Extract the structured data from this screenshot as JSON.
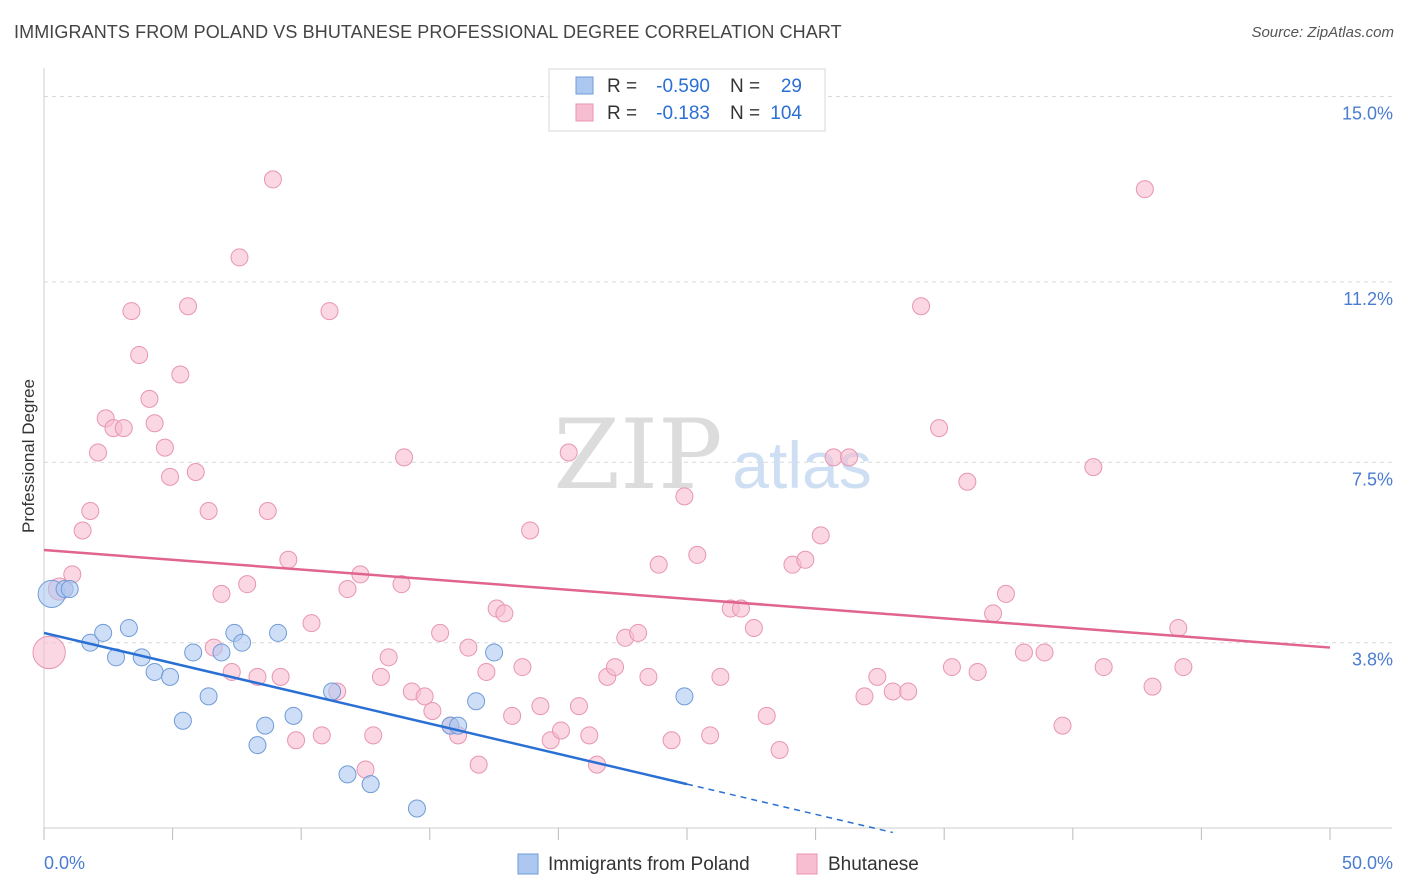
{
  "header": {
    "title": "IMMIGRANTS FROM POLAND VS BHUTANESE PROFESSIONAL DEGREE CORRELATION CHART",
    "source": "Source: ZipAtlas.com"
  },
  "watermark": {
    "zip": "ZIP",
    "atlas": "atlas"
  },
  "colors": {
    "poland_fill": "#adc8f0",
    "poland_stroke": "#6f9bd8",
    "poland_line": "#2a6fd4",
    "bhutanese_fill": "#f7bdd0",
    "bhutanese_stroke": "#e895b1",
    "bhutanese_line": "#e0648e",
    "axis_value": "#4a7cd0",
    "grid": "#d9d9d9"
  },
  "legend_top": {
    "rows": [
      {
        "r_label": "R =",
        "r_value": "-0.590",
        "n_label": "N =",
        "n_value": "29"
      },
      {
        "r_label": "R =",
        "r_value": "-0.183",
        "n_label": "N =",
        "n_value": "104"
      }
    ]
  },
  "chart_data": {
    "type": "scatter",
    "xlabel": "",
    "ylabel": "Professional Degree",
    "xlim": [
      0,
      50
    ],
    "ylim": [
      0,
      15.4
    ],
    "x_tick_labels": [
      "0.0%",
      "50.0%"
    ],
    "y_ticks": [
      3.8,
      7.5,
      11.2,
      15.0
    ],
    "y_tick_labels": [
      "3.8%",
      "7.5%",
      "11.2%",
      "15.0%"
    ],
    "grid": "horizontal dashed",
    "legend_position": "bottom-center",
    "series": [
      {
        "name": "Immigrants from Poland",
        "r": -0.59,
        "n": 29,
        "trend": {
          "x0": 0,
          "y0": 4.0,
          "x1": 25,
          "y1": 0.9,
          "dashed_to_x": 33
        },
        "points": [
          [
            0.3,
            4.8,
            1.6
          ],
          [
            0.8,
            4.9,
            1
          ],
          [
            1.0,
            4.9,
            1
          ],
          [
            1.8,
            3.8,
            1
          ],
          [
            2.3,
            4.0,
            1
          ],
          [
            2.8,
            3.5,
            1
          ],
          [
            3.3,
            4.1,
            1
          ],
          [
            3.8,
            3.5,
            1
          ],
          [
            4.3,
            3.2,
            1
          ],
          [
            4.9,
            3.1,
            1
          ],
          [
            5.4,
            2.2,
            1
          ],
          [
            5.8,
            3.6,
            1
          ],
          [
            6.4,
            2.7,
            1
          ],
          [
            6.9,
            3.6,
            1
          ],
          [
            7.4,
            4.0,
            1
          ],
          [
            7.7,
            3.8,
            1
          ],
          [
            8.3,
            1.7,
            1
          ],
          [
            8.6,
            2.1,
            1
          ],
          [
            9.1,
            4.0,
            1
          ],
          [
            9.7,
            2.3,
            1
          ],
          [
            11.2,
            2.8,
            1
          ],
          [
            11.8,
            1.1,
            1
          ],
          [
            12.7,
            0.9,
            1
          ],
          [
            14.5,
            0.4,
            1
          ],
          [
            15.8,
            2.1,
            1
          ],
          [
            16.1,
            2.1,
            1
          ],
          [
            16.8,
            2.6,
            1
          ],
          [
            17.5,
            3.6,
            1
          ],
          [
            24.9,
            2.7,
            1
          ]
        ]
      },
      {
        "name": "Bhutanese",
        "r": -0.183,
        "n": 104,
        "trend": {
          "x0": 0,
          "y0": 5.7,
          "x1": 50,
          "y1": 3.7
        },
        "points": [
          [
            0.2,
            3.6,
            1.9
          ],
          [
            0.6,
            4.9,
            1.3
          ],
          [
            1.1,
            5.2,
            1
          ],
          [
            1.5,
            6.1,
            1
          ],
          [
            1.8,
            6.5,
            1
          ],
          [
            2.1,
            7.7,
            1
          ],
          [
            2.4,
            8.4,
            1
          ],
          [
            2.7,
            8.2,
            1
          ],
          [
            3.1,
            8.2,
            1
          ],
          [
            3.4,
            10.6,
            1
          ],
          [
            3.7,
            9.7,
            1
          ],
          [
            4.1,
            8.8,
            1
          ],
          [
            4.3,
            8.3,
            1
          ],
          [
            4.7,
            7.8,
            1
          ],
          [
            4.9,
            7.2,
            1
          ],
          [
            5.3,
            9.3,
            1
          ],
          [
            5.6,
            10.7,
            1
          ],
          [
            5.9,
            7.3,
            1
          ],
          [
            6.4,
            6.5,
            1
          ],
          [
            6.6,
            3.7,
            1
          ],
          [
            6.9,
            4.8,
            1
          ],
          [
            7.3,
            3.2,
            1
          ],
          [
            7.6,
            11.7,
            1
          ],
          [
            7.9,
            5.0,
            1
          ],
          [
            8.3,
            3.1,
            1
          ],
          [
            8.7,
            6.5,
            1
          ],
          [
            8.9,
            13.3,
            1
          ],
          [
            9.2,
            3.1,
            1
          ],
          [
            9.5,
            5.5,
            1
          ],
          [
            9.8,
            1.8,
            1
          ],
          [
            10.4,
            4.2,
            1
          ],
          [
            10.8,
            1.9,
            1
          ],
          [
            11.1,
            10.6,
            1
          ],
          [
            11.4,
            2.8,
            1
          ],
          [
            11.8,
            4.9,
            1
          ],
          [
            12.3,
            5.2,
            1
          ],
          [
            12.5,
            1.2,
            1
          ],
          [
            12.8,
            1.9,
            1
          ],
          [
            13.1,
            3.1,
            1
          ],
          [
            13.4,
            3.5,
            1
          ],
          [
            13.9,
            5.0,
            1
          ],
          [
            14.0,
            7.6,
            1
          ],
          [
            14.3,
            2.8,
            1
          ],
          [
            14.8,
            2.7,
            1
          ],
          [
            15.1,
            2.4,
            1
          ],
          [
            15.4,
            4.0,
            1
          ],
          [
            15.8,
            2.1,
            1
          ],
          [
            16.1,
            1.9,
            1
          ],
          [
            16.5,
            3.7,
            1
          ],
          [
            16.9,
            1.3,
            1
          ],
          [
            17.2,
            3.2,
            1
          ],
          [
            17.6,
            4.5,
            1
          ],
          [
            17.9,
            4.4,
            1
          ],
          [
            18.2,
            2.3,
            1
          ],
          [
            18.6,
            3.3,
            1
          ],
          [
            18.9,
            6.1,
            1
          ],
          [
            19.3,
            2.5,
            1
          ],
          [
            19.7,
            1.8,
            1
          ],
          [
            20.1,
            2.0,
            1
          ],
          [
            20.4,
            7.7,
            1
          ],
          [
            20.8,
            2.5,
            1
          ],
          [
            21.2,
            1.9,
            1
          ],
          [
            21.5,
            1.3,
            1
          ],
          [
            21.9,
            3.1,
            1
          ],
          [
            22.2,
            3.3,
            1
          ],
          [
            22.6,
            3.9,
            1
          ],
          [
            23.1,
            4.0,
            1
          ],
          [
            23.5,
            3.1,
            1
          ],
          [
            23.9,
            5.4,
            1
          ],
          [
            24.4,
            1.8,
            1
          ],
          [
            24.9,
            6.8,
            1
          ],
          [
            25.4,
            5.6,
            1
          ],
          [
            25.9,
            1.9,
            1
          ],
          [
            26.3,
            3.1,
            1
          ],
          [
            26.7,
            4.5,
            1
          ],
          [
            27.1,
            4.5,
            1
          ],
          [
            27.6,
            4.1,
            1
          ],
          [
            28.1,
            2.3,
            1
          ],
          [
            28.6,
            1.6,
            1
          ],
          [
            29.1,
            5.4,
            1
          ],
          [
            29.6,
            5.5,
            1
          ],
          [
            30.2,
            6.0,
            1
          ],
          [
            30.7,
            7.6,
            1
          ],
          [
            31.3,
            7.6,
            1
          ],
          [
            31.9,
            2.7,
            1
          ],
          [
            32.4,
            3.1,
            1
          ],
          [
            33.0,
            2.8,
            1
          ],
          [
            33.6,
            2.8,
            1
          ],
          [
            34.1,
            10.7,
            1
          ],
          [
            34.8,
            8.2,
            1
          ],
          [
            35.3,
            3.3,
            1
          ],
          [
            35.9,
            7.1,
            1
          ],
          [
            36.3,
            3.2,
            1
          ],
          [
            36.9,
            4.4,
            1
          ],
          [
            37.4,
            4.8,
            1
          ],
          [
            38.1,
            3.6,
            1
          ],
          [
            38.9,
            3.6,
            1
          ],
          [
            39.6,
            2.1,
            1
          ],
          [
            40.8,
            7.4,
            1
          ],
          [
            41.2,
            3.3,
            1
          ],
          [
            42.8,
            13.1,
            1
          ],
          [
            43.1,
            2.9,
            1
          ],
          [
            44.1,
            4.1,
            1
          ],
          [
            44.3,
            3.3,
            1
          ]
        ]
      }
    ]
  },
  "legend_bottom": {
    "items": [
      {
        "label": "Immigrants from Poland"
      },
      {
        "label": "Bhutanese"
      }
    ]
  }
}
